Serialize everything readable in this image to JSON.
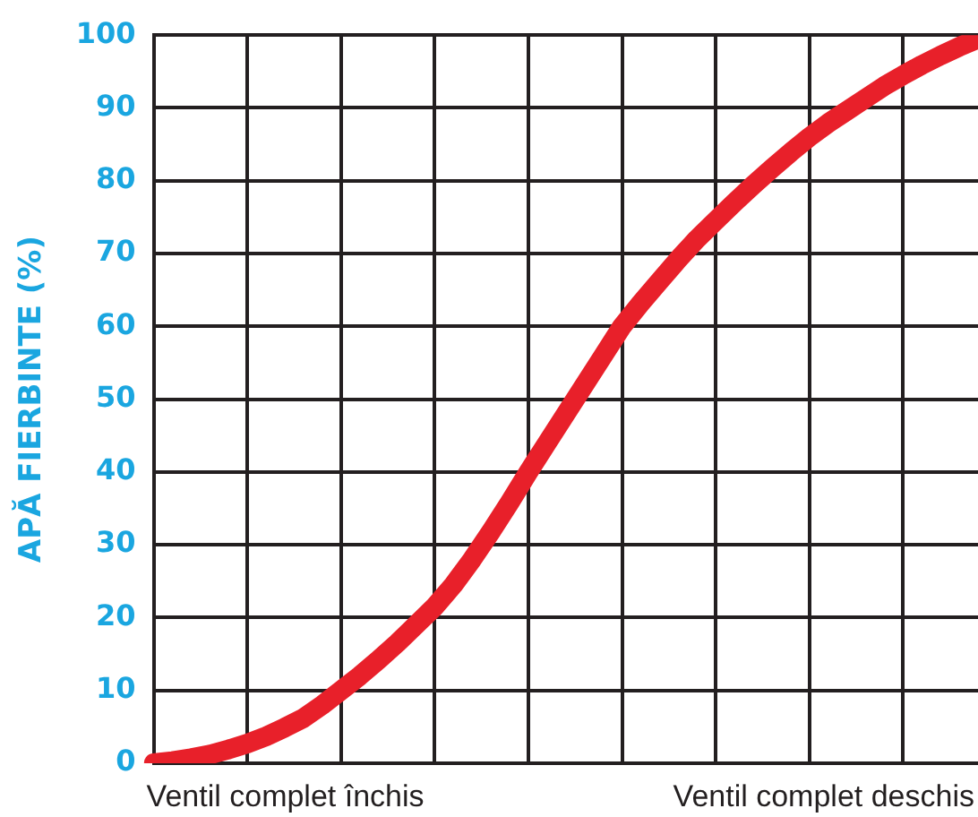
{
  "chart_data": {
    "type": "line",
    "ylabel": "APĂ FIERBINTE (%)",
    "categories": [
      null,
      null,
      null,
      null,
      null,
      null,
      null,
      null,
      null,
      null,
      null,
      null,
      null,
      null,
      null,
      null,
      null,
      null,
      null,
      null,
      null,
      null,
      null,
      null,
      null,
      null,
      null,
      null,
      null,
      null,
      null,
      null,
      null,
      null,
      null,
      null,
      null,
      null,
      null,
      null,
      null,
      null,
      null,
      null,
      null
    ],
    "series": [
      {
        "color": "#e8202a",
        "values": [
          0,
          0.3,
          0.7,
          1.2,
          1.9,
          2.7,
          3.7,
          4.9,
          6.2,
          8,
          10,
          12,
          14.2,
          16.5,
          19,
          21.5,
          24.5,
          28,
          31.8,
          35.8,
          40,
          44,
          48,
          52,
          56,
          60,
          63.2,
          66.2,
          69.2,
          72,
          74.5,
          77,
          79.4,
          81.7,
          83.9,
          86,
          87.9,
          89.6,
          91.3,
          93,
          94.5,
          95.9,
          97.2,
          98.4,
          99.5
        ]
      }
    ],
    "ylim": [
      0,
      100
    ],
    "yticks": [
      0,
      10,
      20,
      30,
      40,
      50,
      60,
      70,
      80,
      90,
      100
    ],
    "tick_labels": "y",
    "grid": true,
    "legend": false,
    "marker": "none",
    "line_style": "solid",
    "annotations": [
      "Ventil complet închis",
      "Ventil complet deschis"
    ]
  }
}
